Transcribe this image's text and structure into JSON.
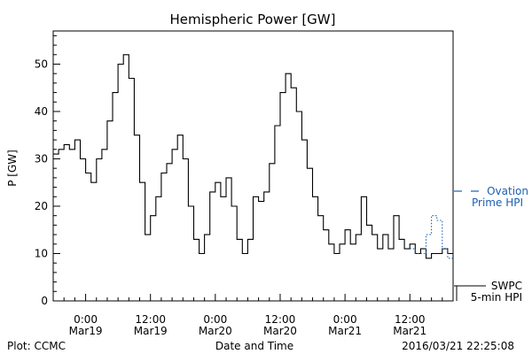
{
  "chart_data": {
    "type": "line",
    "title": "Hemispheric Power [GW]",
    "xlabel": "Date and Time",
    "ylabel": "P [GW]",
    "ylim": [
      0,
      57
    ],
    "xlim_hours": [
      -6,
      68
    ],
    "y_ticks": [
      "0",
      "10",
      "20",
      "30",
      "40",
      "50"
    ],
    "x_ticks": [
      {
        "time": "0:00",
        "date": "Mar19"
      },
      {
        "time": "12:00",
        "date": "Mar19"
      },
      {
        "time": "0:00",
        "date": "Mar20"
      },
      {
        "time": "12:00",
        "date": "Mar20"
      },
      {
        "time": "0:00",
        "date": "Mar21"
      },
      {
        "time": "12:00",
        "date": "Mar21"
      }
    ],
    "legend_placement": "right",
    "series": [
      {
        "name": "SWPC 5-min HPI",
        "color": "#000000",
        "style": "solid",
        "x": [
          -6,
          -5,
          -4,
          -3,
          -2,
          -1,
          0,
          1,
          2,
          3,
          4,
          5,
          6,
          7,
          8,
          9,
          10,
          11,
          12,
          13,
          14,
          15,
          16,
          17,
          18,
          19,
          20,
          21,
          22,
          23,
          24,
          25,
          26,
          27,
          28,
          29,
          30,
          31,
          32,
          33,
          34,
          35,
          36,
          37,
          38,
          39,
          40,
          41,
          42,
          43,
          44,
          45,
          46,
          47,
          48,
          49,
          50,
          51,
          52,
          53,
          54,
          55,
          56,
          57,
          58,
          59,
          60,
          61,
          62,
          63,
          64,
          65,
          66,
          67,
          68
        ],
        "y": [
          31,
          32,
          33,
          32,
          34,
          30,
          27,
          25,
          30,
          32,
          38,
          44,
          50,
          52,
          47,
          35,
          25,
          14,
          18,
          22,
          27,
          29,
          32,
          35,
          30,
          20,
          13,
          10,
          14,
          23,
          25,
          22,
          26,
          20,
          13,
          10,
          13,
          22,
          21,
          23,
          29,
          37,
          44,
          48,
          45,
          40,
          34,
          28,
          22,
          18,
          15,
          12,
          10,
          12,
          15,
          12,
          14,
          22,
          16,
          14,
          11,
          14,
          11,
          18,
          13,
          11,
          12,
          10,
          11,
          9,
          10,
          10,
          11,
          10,
          10
        ]
      },
      {
        "name": "Ovation Prime HPI",
        "color": "#1a5fb4",
        "style": "dotted",
        "x": [
          60,
          61,
          62,
          63,
          64,
          65,
          66,
          67,
          68
        ],
        "y": [
          11,
          10,
          10,
          14,
          18,
          17,
          11,
          9,
          9
        ]
      }
    ]
  },
  "legend": {
    "ovation_line1": "Ovation",
    "ovation_line2": "Prime HPI",
    "swpc_line1": "SWPC",
    "swpc_line2": "5-min HPI"
  },
  "footer": {
    "plot_credit": "Plot: CCMC",
    "timestamp": "2016/03/21 22:25:08"
  }
}
